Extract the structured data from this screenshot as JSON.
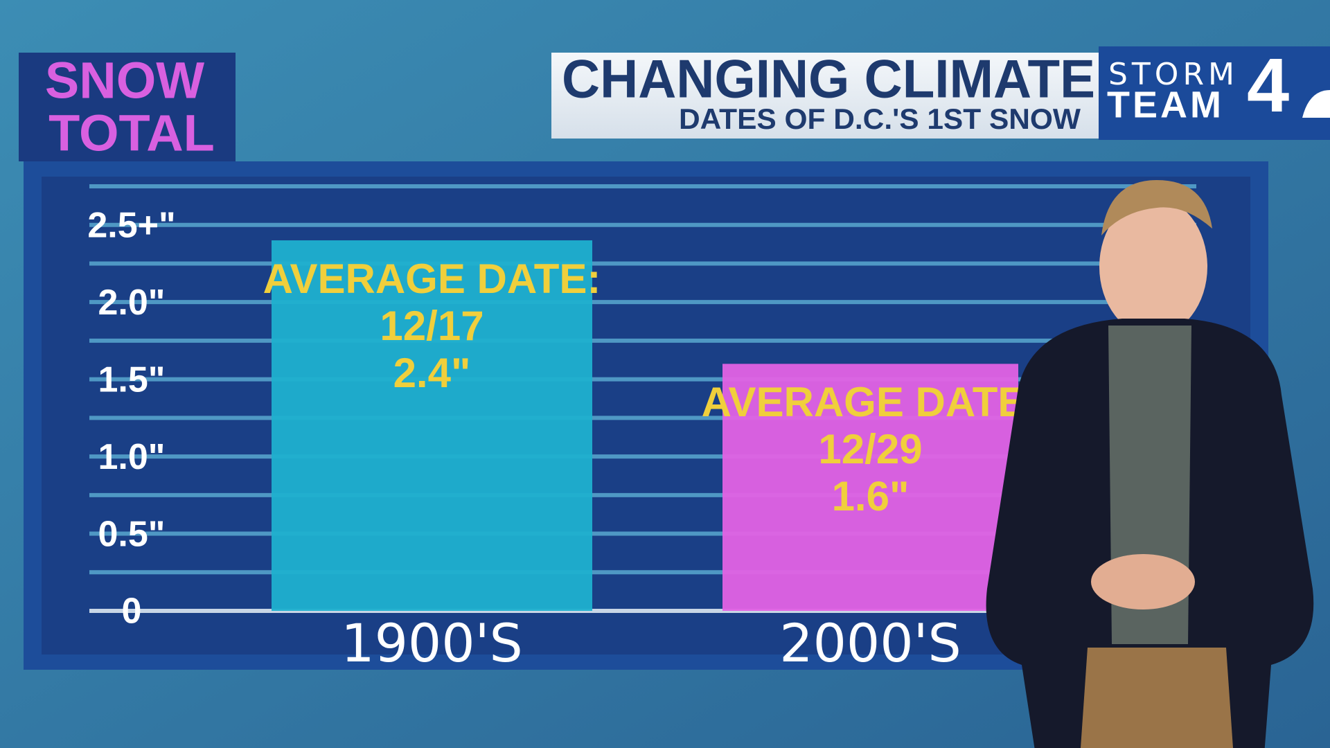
{
  "chart_data": {
    "type": "bar",
    "title": "CHANGING CLIMATE",
    "subtitle": "DATES OF D.C.'S 1ST SNOW",
    "y_label": [
      "SNOW",
      "TOTAL"
    ],
    "brand": [
      "STORM",
      "TEAM",
      "4"
    ],
    "categories": [
      "1900'S",
      "2000'S"
    ],
    "values": [
      2.4,
      1.6
    ],
    "value_labels": [
      "2.4\"",
      "1.6\""
    ],
    "bar_headings": [
      "AVERAGE DATE:",
      "AVERAGE DATE:"
    ],
    "date_labels": [
      "12/17",
      "12/29"
    ],
    "colors": [
      "#1fb0cf",
      "#e162e4"
    ],
    "label_color": "#f0cf3c",
    "ylim": [
      0,
      2.75
    ],
    "yticks": [
      0,
      {
        "value": 0.5,
        "label": "0.5\""
      },
      {
        "value": 1.0,
        "label": "1.0\""
      },
      {
        "value": 1.5,
        "label": "1.5\""
      },
      {
        "value": 2.0,
        "label": "2.0\""
      },
      {
        "value": 2.5,
        "label": "2.5+\""
      }
    ],
    "minor_yticks": [
      0.25,
      0.75,
      1.25,
      1.75,
      2.25,
      2.75
    ],
    "grid": true
  }
}
